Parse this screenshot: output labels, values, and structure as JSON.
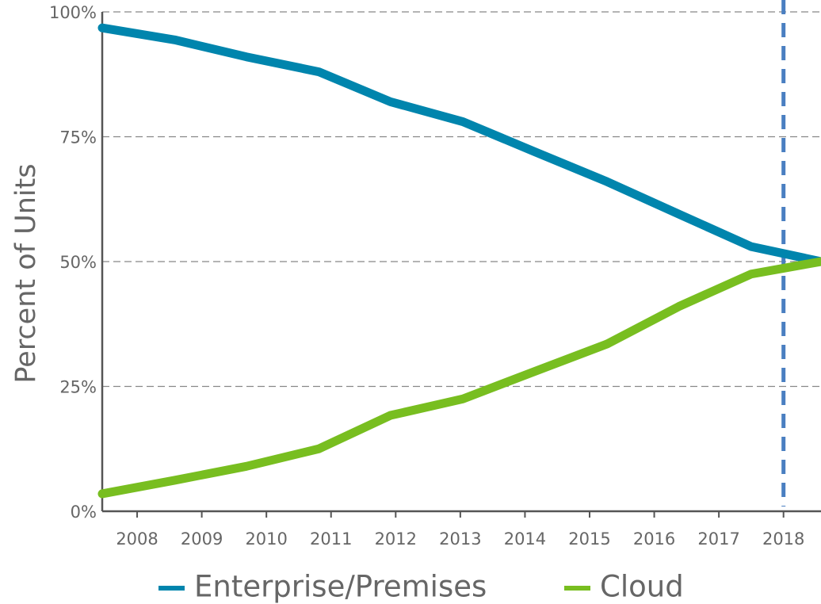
{
  "chart_data": {
    "type": "line",
    "y_label": "Percent of Units",
    "x": [
      2007.46,
      2008.58,
      2009.69,
      2010.81,
      2011.92,
      2013.04,
      2014.15,
      2015.27,
      2016.38,
      2017.5,
      2018.58
    ],
    "series": [
      {
        "name": "Enterprise/Premises",
        "color": "#0085ad",
        "values": [
          96.8,
          94.4,
          91,
          88,
          82,
          78,
          72,
          66,
          59.5,
          53,
          50
        ]
      },
      {
        "name": "Cloud",
        "color": "#78be20",
        "values": [
          3.5,
          6.2,
          9,
          12.5,
          19.2,
          22.5,
          28,
          33.5,
          41,
          47.5,
          50
        ]
      }
    ],
    "xlim": [
      2007.46,
      2018.58
    ],
    "xticks": [
      2008,
      2009,
      2010,
      2011,
      2012,
      2013,
      2014,
      2015,
      2016,
      2017,
      2018
    ],
    "ylim": [
      0,
      100
    ],
    "yticks": [
      {
        "value": 0,
        "label": "0%"
      },
      {
        "value": 25,
        "label": "25%"
      },
      {
        "value": 50,
        "label": "50%"
      },
      {
        "value": 75,
        "label": "75%"
      },
      {
        "value": 100,
        "label": "100%"
      }
    ],
    "grid": true,
    "reference_x": 2018,
    "reference_color": "#4a7fc1",
    "legend": "bottom"
  }
}
